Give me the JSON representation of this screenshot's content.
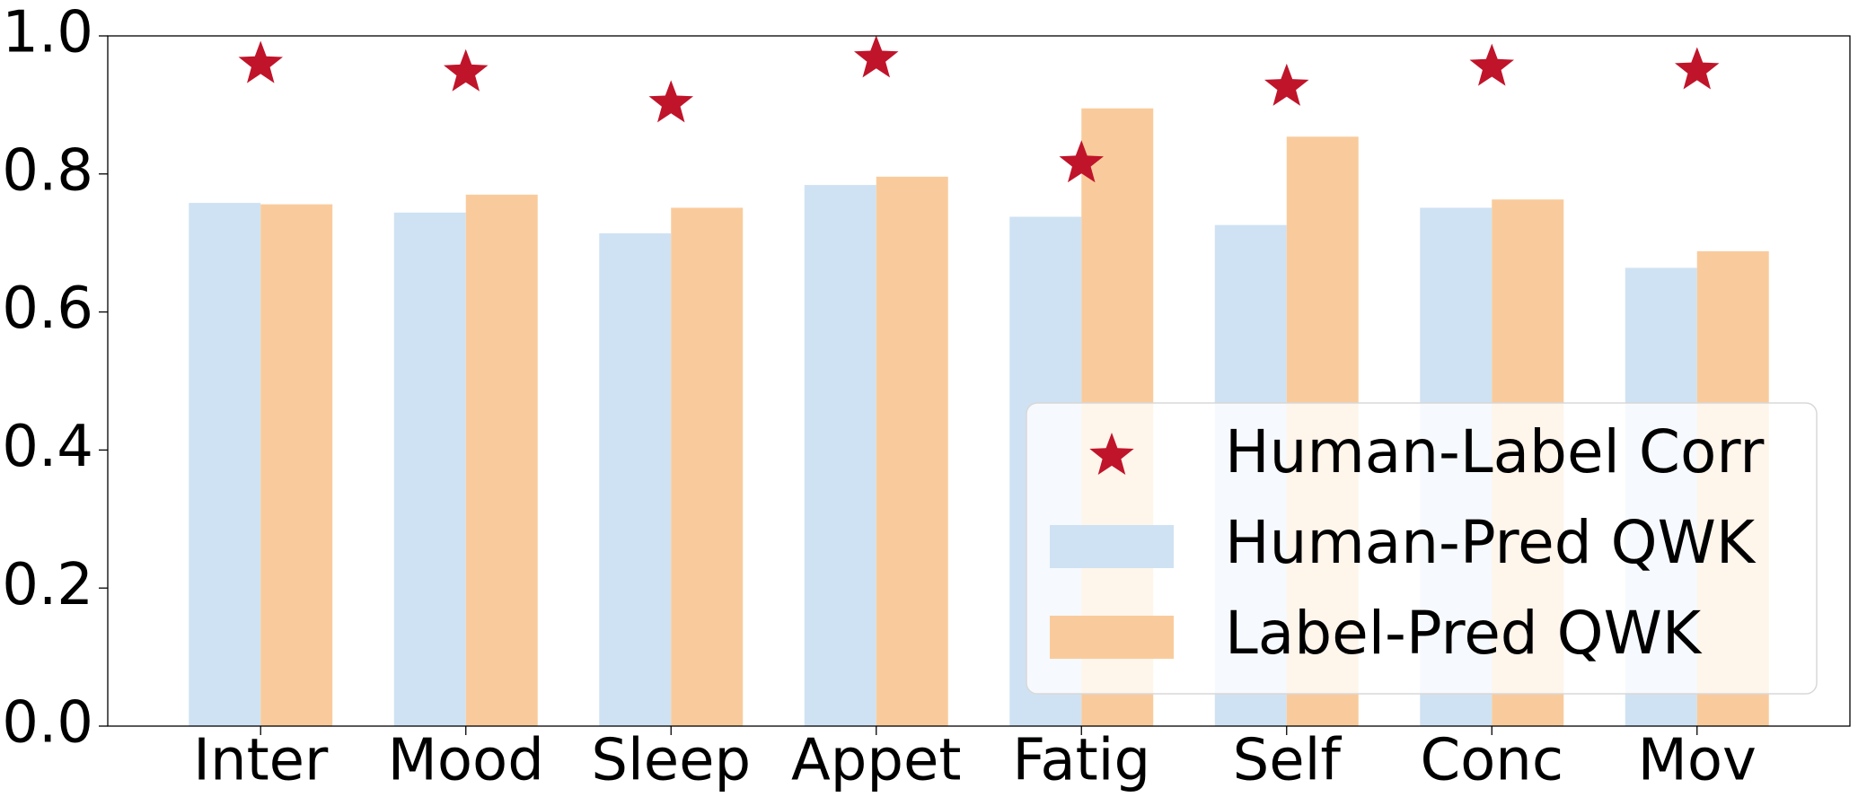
{
  "chart_data": {
    "type": "bar",
    "categories": [
      "Inter",
      "Mood",
      "Sleep",
      "Appet",
      "Fatig",
      "Self",
      "Conc",
      "Mov"
    ],
    "series": [
      {
        "name": "Human-Label Corr",
        "type": "scatter",
        "marker": "star",
        "color": "#c0142a",
        "values": [
          0.959,
          0.947,
          0.902,
          0.967,
          0.815,
          0.926,
          0.955,
          0.95
        ]
      },
      {
        "name": "Human-Pred QWK",
        "type": "bar",
        "color": "#cfe2f3",
        "values": [
          0.758,
          0.744,
          0.714,
          0.784,
          0.738,
          0.726,
          0.751,
          0.664
        ]
      },
      {
        "name": "Label-Pred QWK",
        "type": "bar",
        "color": "#f9cb9c",
        "values": [
          0.756,
          0.77,
          0.751,
          0.796,
          0.895,
          0.854,
          0.763,
          0.688
        ]
      }
    ],
    "ylim": [
      0,
      1
    ],
    "yticks": [
      {
        "value": 0,
        "label": "0.0"
      },
      0.2,
      0.4,
      0.6,
      0.8,
      {
        "value": 1,
        "label": "1.0"
      }
    ],
    "legend": "lower right"
  }
}
